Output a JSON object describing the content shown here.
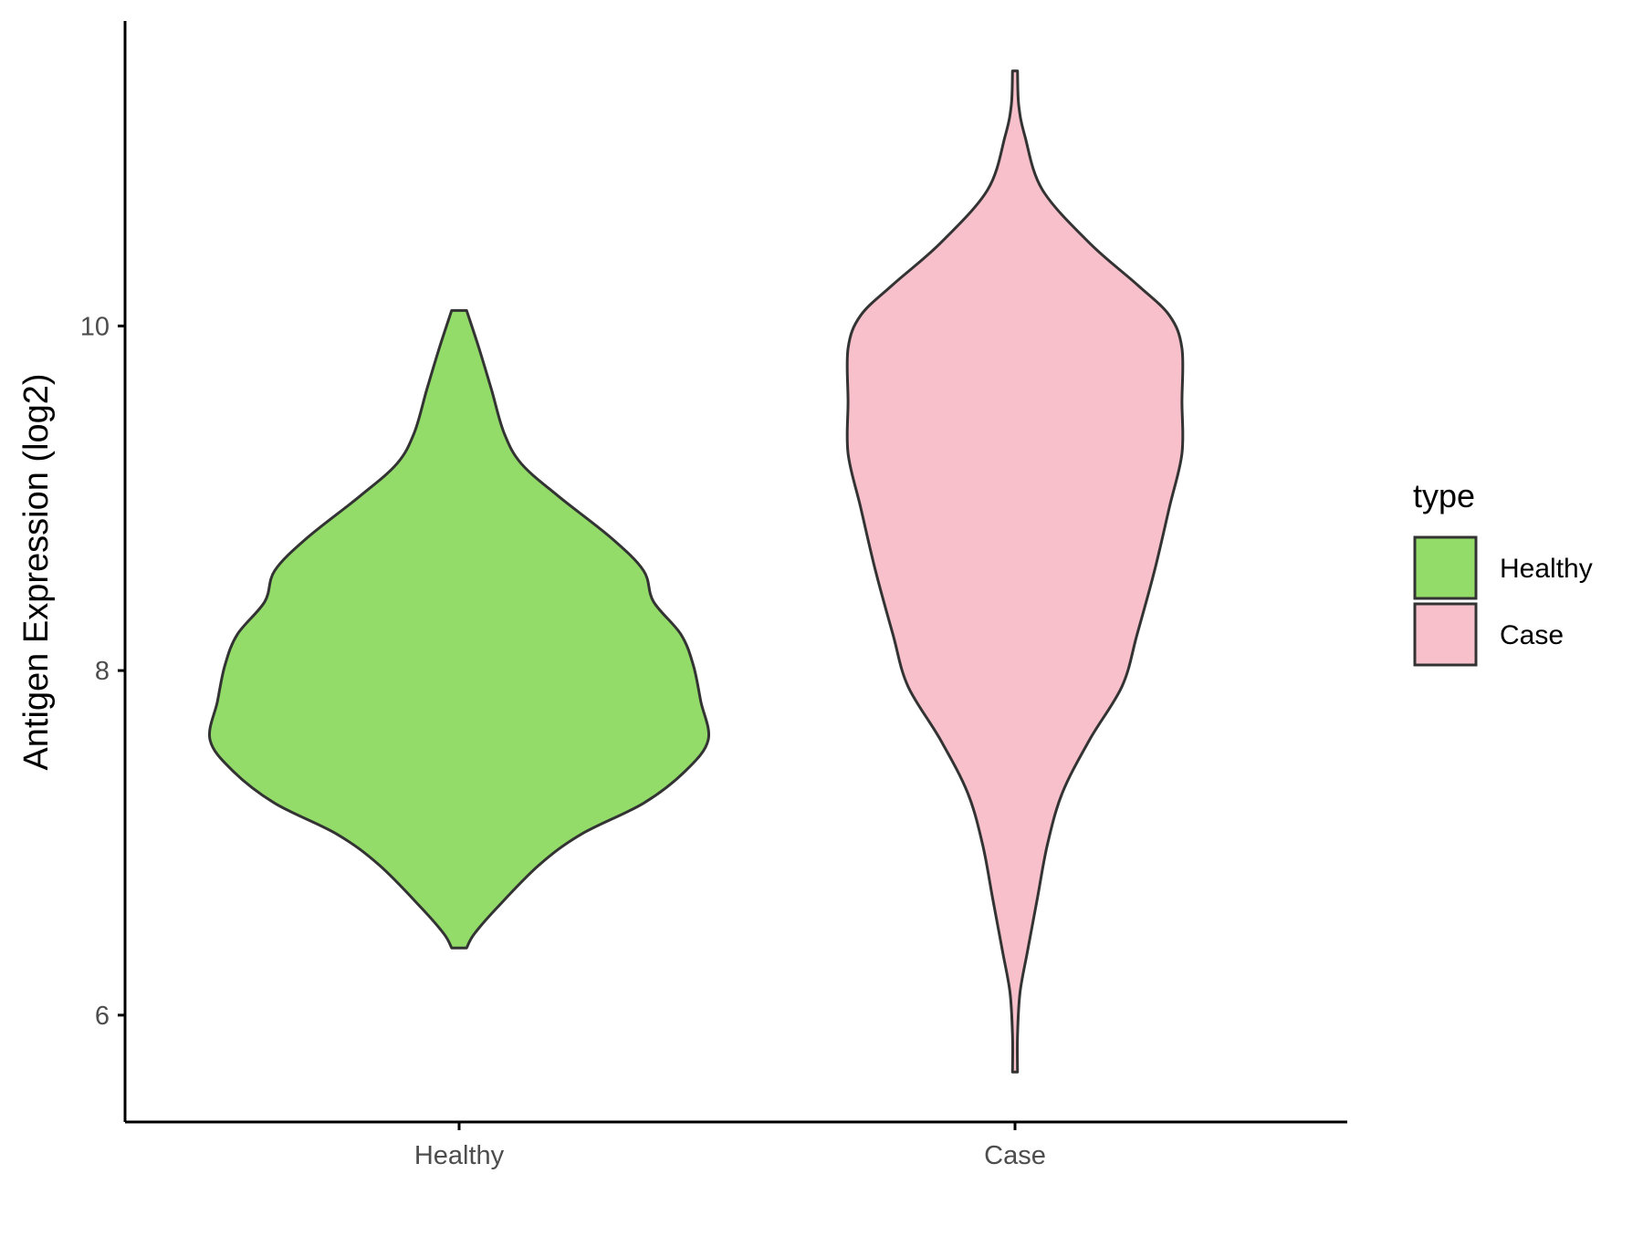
{
  "chart_data": {
    "type": "violin",
    "title": "",
    "xlabel": "",
    "ylabel": "Antigen Expression (log2)",
    "ylim": [
      5.38,
      11.77
    ],
    "yticks": [
      6,
      8,
      10
    ],
    "ytick_labels": [
      "6",
      "8",
      "10"
    ],
    "categories": [
      "Healthy",
      "Case"
    ],
    "grid": false,
    "legend": {
      "title": "type",
      "placement": "right",
      "entries": [
        {
          "label": "Healthy",
          "color": "#93DC6A"
        },
        {
          "label": "Case",
          "color": "#F7C0CB"
        }
      ]
    },
    "series": [
      {
        "name": "Healthy",
        "color": "#93DC6A",
        "density_profile": [
          [
            10.09,
            0.03
          ],
          [
            9.87,
            0.08
          ],
          [
            9.63,
            0.13
          ],
          [
            9.38,
            0.18
          ],
          [
            9.2,
            0.25
          ],
          [
            9.01,
            0.4
          ],
          [
            8.77,
            0.61
          ],
          [
            8.58,
            0.74
          ],
          [
            8.4,
            0.78
          ],
          [
            8.21,
            0.89
          ],
          [
            8.03,
            0.94
          ],
          [
            7.82,
            0.97
          ],
          [
            7.6,
            1.0
          ],
          [
            7.42,
            0.91
          ],
          [
            7.23,
            0.74
          ],
          [
            7.05,
            0.49
          ],
          [
            6.87,
            0.32
          ],
          [
            6.62,
            0.15
          ],
          [
            6.47,
            0.06
          ],
          [
            6.39,
            0.03
          ]
        ]
      },
      {
        "name": "Case",
        "color": "#F7C0CB",
        "density_profile": [
          [
            11.48,
            0.01
          ],
          [
            11.28,
            0.015
          ],
          [
            11.1,
            0.04
          ],
          [
            10.79,
            0.11
          ],
          [
            10.48,
            0.3
          ],
          [
            10.24,
            0.49
          ],
          [
            10.06,
            0.62
          ],
          [
            9.87,
            0.67
          ],
          [
            9.56,
            0.67
          ],
          [
            9.26,
            0.67
          ],
          [
            8.95,
            0.62
          ],
          [
            8.58,
            0.56
          ],
          [
            8.21,
            0.49
          ],
          [
            7.91,
            0.43
          ],
          [
            7.6,
            0.3
          ],
          [
            7.29,
            0.19
          ],
          [
            6.99,
            0.13
          ],
          [
            6.68,
            0.09
          ],
          [
            6.37,
            0.05
          ],
          [
            6.13,
            0.02
          ],
          [
            5.88,
            0.01
          ],
          [
            5.67,
            0.01
          ]
        ]
      }
    ]
  }
}
